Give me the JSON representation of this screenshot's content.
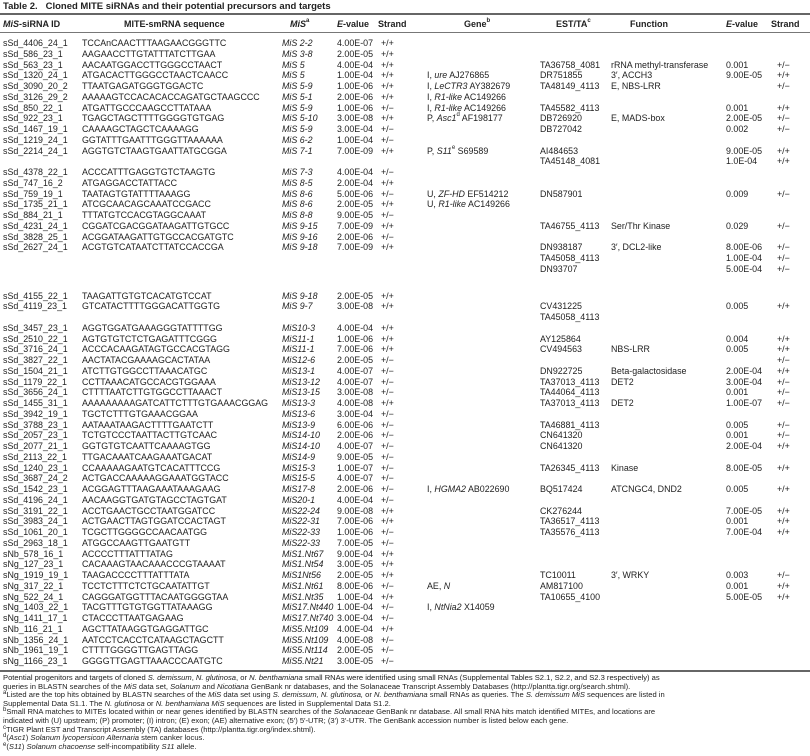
{
  "title": "Table 2.   Cloned MITE siRNAs and their potential precursors and targets",
  "header": {
    "id": [
      {
        "t": "MiS",
        "i": true
      },
      {
        "t": "-siRNA ID"
      }
    ],
    "seq": [
      {
        "t": "MITE-smRNA sequence"
      }
    ],
    "mis": [
      {
        "t": "MiS",
        "i": true
      },
      {
        "t": "a",
        "sup": true
      }
    ],
    "e1": [
      {
        "t": "E",
        "i": true
      },
      {
        "t": "-value"
      }
    ],
    "s1": [
      {
        "t": "Strand"
      }
    ],
    "gene": [
      {
        "t": "Gene"
      },
      {
        "t": "b",
        "sup": true
      }
    ],
    "est": [
      {
        "t": "EST/TA"
      },
      {
        "t": "c",
        "sup": true
      }
    ],
    "func": [
      {
        "t": "Function"
      }
    ],
    "e2": [
      {
        "t": "E",
        "i": true
      },
      {
        "t": "-value"
      }
    ],
    "s2": [
      {
        "t": "Strand"
      }
    ]
  },
  "rows": [
    {
      "id": "sSd_4406_24_1",
      "seq": "TCCAnCAACTTTAAGAACGGGTTC",
      "mis": "MiS 2-2",
      "e1": "4.00E-07",
      "s1": "+/+"
    },
    {
      "id": "sSd_586_23_1",
      "seq": "AAGAACCTTGTATTTATCTTGAA",
      "mis": "MiS 3-8",
      "e1": "2.00E-05",
      "s1": "+/+"
    },
    {
      "id": "sSd_563_23_1",
      "seq": "AACAATGGACCTTGGGCCTAACT",
      "mis": "MiS 5",
      "e1": "4.00E-04",
      "s1": "+/+",
      "est": "TA36758_4081",
      "func": "rRNA methyl-transferase",
      "e2": "0.001",
      "s2": "+/−"
    },
    {
      "id": "sSd_1320_24_1",
      "seq": "ATGACACTTGGGCCTAACTCAACC",
      "mis": "MiS 5",
      "e1": "1.00E-04",
      "s1": "+/+",
      "gene": {
        "type": "I, ",
        "name": "ure",
        "acc": " AJ276865"
      },
      "est": "DR751855",
      "func": "3′, ACCH3",
      "e2": "9.00E-05",
      "s2": "+/+"
    },
    {
      "id": "sSd_3090_20_2",
      "seq": "TTAATGAGATGGGTGGACTC",
      "mis": "MiS 5-9",
      "e1": "1.00E-06",
      "s1": "+/+",
      "gene": {
        "type": "I, ",
        "name": "LeCTR3",
        "acc": " AY382679"
      },
      "est": "TA48149_4113",
      "func": "E, NBS-LRR",
      "s2": "+/−"
    },
    {
      "id": "sSd_3126_29_2",
      "seq": "AAAAAGTCCACACACCAGATGCTAAGCCC",
      "mis": "MiS 5-1",
      "e1": "2.00E-06",
      "s1": "+/+",
      "gene": {
        "type": "I, ",
        "name": "R1-like",
        "acc": " AC149266"
      }
    },
    {
      "id": "sSd_850_22_1",
      "seq": "ATGATTGCCCAAGCCTTATAAA",
      "mis": "MiS 5-9",
      "e1": "1.00E-06",
      "s1": "+/−",
      "gene": {
        "type": "I, ",
        "name": "R1-like",
        "acc": " AC149266"
      },
      "est": "TA45582_4113",
      "e2": "0.001",
      "s2": "+/+"
    },
    {
      "id": "sSd_922_23_1",
      "seq": "TGAGCTAGCTTTTGGGGTGTGAG",
      "mis": "MiS 5-10",
      "e1": "3.00E-08",
      "s1": "+/+",
      "gene": {
        "type": "P, ",
        "name": "Asc1",
        "sup": "d",
        "acc": " AF198177"
      },
      "est": "DB726920",
      "func": "E, MADS-box",
      "e2": "2.00E-05",
      "s2": "+/−"
    },
    {
      "id": "sSd_1467_19_1",
      "seq": "CAAAAGCTAGCTCAAAAGG",
      "mis": "MiS 5-9",
      "e1": "3.00E-04",
      "s1": "+/−",
      "est": "DB727042",
      "e2": "0.002",
      "s2": "+/−"
    },
    {
      "id": "sSd_1219_24_1",
      "seq": "GGTATTTGAATTTGGGTTAAAAAA",
      "mis": "MiS 6-2",
      "e1": "1.00E-04",
      "s1": "+/−"
    },
    {
      "id": "sSd_2214_24_1",
      "seq": "AGGTGTCTAAGTGAATTATGCGGA",
      "mis": "MiS 7-1",
      "e1": "7.00E-09",
      "s1": "+/+",
      "gene": {
        "type": "P, ",
        "name": "S11",
        "sup": "e",
        "acc": " S69589"
      },
      "est": "AI484653",
      "e2": "9.00E-05",
      "s2": "+/+"
    },
    {
      "est": "TA45148_4081",
      "e2": "1.0E-04",
      "s2": "+/+"
    },
    {
      "id": "sSd_4378_22_1",
      "seq": "ACCCATTTGAGGTGTCTAAGTG",
      "mis": "MiS 7-3",
      "e1": "4.00E-04",
      "s1": "+/−"
    },
    {
      "id": "sSd_747_16_2",
      "seq": "ATGAGGACCTATTACC",
      "mis": "MiS 8-5",
      "e1": "2.00E-04",
      "s1": "+/+"
    },
    {
      "id": "sSd_759_19_1",
      "seq": "TAATAGTGTATTTTAAAGG",
      "mis": "MiS 8-6",
      "e1": "5.00E-06",
      "s1": "+/−",
      "gene": {
        "type": "U, ",
        "name": "ZF-HD",
        "acc": " EF514212"
      },
      "est": "DN587901",
      "e2": "0.009",
      "s2": "+/−"
    },
    {
      "id": "sSd_1735_21_1",
      "seq": "ATCGCAACAGCAAATCCGACC",
      "mis": "MiS 8-6",
      "e1": "2.00E-05",
      "s1": "+/+",
      "gene": {
        "type": "U, ",
        "name": "R1-like",
        "acc": " AC149266"
      }
    },
    {
      "id": "sSd_884_21_1",
      "seq": "TTTATGTCCACGTAGGCAAAT",
      "mis": "MiS 8-8",
      "e1": "9.00E-05",
      "s1": "+/−"
    },
    {
      "id": "sSd_4231_24_1",
      "seq": "CGGATCGACGGATAAGATTGTGCC",
      "mis": "MiS 9-15",
      "e1": "7.00E-09",
      "s1": "+/+",
      "est": "TA46755_4113",
      "func": "Ser/Thr Kinase",
      "e2": "0.029",
      "s2": "+/−"
    },
    {
      "id": "sSd_3828_25_1",
      "seq": "ACGGATAAGATTGTGCCACGATGTC",
      "mis": "MiS 9-16",
      "e1": "2.00E-06",
      "s1": "+/−"
    },
    {
      "id": "sSd_2627_24_1",
      "seq": "ACGTGTCATAATCTTATCCACCGA",
      "mis": "MiS 9-18",
      "e1": "7.00E-09",
      "s1": "+/+",
      "est": "DN938187",
      "func": "3′, DCL2-like",
      "e2": "8.00E-06",
      "s2": "+/−"
    },
    {
      "est": "TA45058_4113",
      "e2": "1.00E-04",
      "s2": "+/−"
    },
    {
      "est": "DN93707",
      "e2": "5.00E-04",
      "s2": "+/−"
    },
    {
      "blank": true
    },
    {
      "blank": true
    },
    {
      "id": "sSd_4155_22_1",
      "seq": "TAAGATTGTGTCACATGTCCAT",
      "mis": "MiS 9-18",
      "e1": "2.00E-05",
      "s1": "+/+"
    },
    {
      "id": "sSd_4119_23_1",
      "seq": "GTCATACTTTTGGGACATTGGTG",
      "mis": "MiS 9-7",
      "e1": "3.00E-08",
      "s1": "+/+",
      "est": "CV431225",
      "e2": "0.005",
      "s2": "+/+"
    },
    {
      "est": "TA45058_4113"
    },
    {
      "id": "sSd_3457_23_1",
      "seq": "AGGTGGATGAAAGGGTATTTTGG",
      "mis": "MiS10-3",
      "e1": "4.00E-04",
      "s1": "+/+"
    },
    {
      "id": "sSd_2510_22_1",
      "seq": "AGTGTGTCTCTGAGATTTCGGG",
      "mis": "MiS11-1",
      "e1": "1.00E-06",
      "s1": "+/+",
      "est": "AY125864",
      "e2": "0.004",
      "s2": "+/+"
    },
    {
      "id": "sSd_3716_24_1",
      "seq": "ACCCACAAGATAGTGCCACGTAGG",
      "mis": "MiS11-1",
      "e1": "7.00E-06",
      "s1": "+/+",
      "est": "CV494563",
      "func": "NBS-LRR",
      "e2": "0.005",
      "s2": "+/+"
    },
    {
      "id": "sSd_3827_22_1",
      "seq": "AACTATACGAAAAGCACTATAA",
      "mis": "MiS12-6",
      "e1": "2.00E-05",
      "s1": "+/−",
      "s2": "+/−"
    },
    {
      "id": "sSd_1504_21_1",
      "seq": "ATCTTGTGGCCTTAAACATGC",
      "mis": "MiS13-1",
      "e1": "4.00E-07",
      "s1": "+/−",
      "est": "DN922725",
      "func": "Beta-galactosidase",
      "e2": "2.00E-04",
      "s2": "+/+"
    },
    {
      "id": "sSd_1179_22_1",
      "seq": "CCTTAAACATGCCACGTGGAAA",
      "mis": "MiS13-12",
      "e1": "4.00E-07",
      "s1": "+/−",
      "est": "TA37013_4113",
      "func": "DET2",
      "e2": "3.00E-04",
      "s2": "+/−"
    },
    {
      "id": "sSd_3656_24_1",
      "seq": "CTTTTAATCTTGTGGCCTTAAACT",
      "mis": "MiS13-15",
      "e1": "3.00E-08",
      "s1": "+/−",
      "est": "TA44064_4113",
      "e2": "0.001",
      "s2": "+/−"
    },
    {
      "id": "sSd_1455_31_1",
      "seq": "AAAAAAAAAGATCATTCTTTGTGAAACGGAG",
      "mis": "MiS13-3",
      "e1": "4.00E-08",
      "s1": "+/+",
      "est": "TA37013_4113",
      "func": "DET2",
      "e2": "1.00E-07",
      "s2": "+/−"
    },
    {
      "id": "sSd_3942_19_1",
      "seq": "TGCTCTTTGTGAAACGGAA",
      "mis": "MiS13-6",
      "e1": "3.00E-04",
      "s1": "+/−"
    },
    {
      "id": "sSd_3788_23_1",
      "seq": "AATAAATAAGACTTTTGAATCTT",
      "mis": "MiS13-9",
      "e1": "6.00E-06",
      "s1": "+/−",
      "est": "TA46881_4113",
      "e2": "0.005",
      "s2": "+/−"
    },
    {
      "id": "sSd_2057_23_1",
      "seq": "TCTGTCCCTAATTACTTGTCAAC",
      "mis": "MiS14-10",
      "e1": "2.00E-06",
      "s1": "+/−",
      "est": "CN641320",
      "e2": "0.001",
      "s2": "+/−"
    },
    {
      "id": "sSd_2077_21_1",
      "seq": "GGTGTGTCAATTCAAAAGTGG",
      "mis": "MiS14-10",
      "e1": "4.00E-07",
      "s1": "+/−",
      "est": "CN641320",
      "e2": "2.00E-04",
      "s2": "+/+"
    },
    {
      "id": "sSd_2113_22_1",
      "seq": "TTGACAAATCAAGAAATGACAT",
      "mis": "MiS14-9",
      "e1": "9.00E-05",
      "s1": "+/−"
    },
    {
      "id": "sSd_1240_23_1",
      "seq": "CCAAAAAGAATGTCACATTTCCG",
      "mis": "MiS15-3",
      "e1": "1.00E-07",
      "s1": "+/−",
      "est": "TA26345_4113",
      "func": "Kinase",
      "e2": "8.00E-05",
      "s2": "+/+"
    },
    {
      "id": "sSd_3687_24_2",
      "seq": "ACTGACCAAAAAGGAAATGGTACC",
      "mis": "MiS15-5",
      "e1": "4.00E-07",
      "s1": "+/−"
    },
    {
      "id": "sSd_1542_23_1",
      "seq": "ACGGAGTTTAAGAAATAAAGAAG",
      "mis": "MiS17-8",
      "e1": "2.00E-06",
      "s1": "+/−",
      "gene": {
        "type": "I, ",
        "name": "HGMA2",
        "acc": " AB022690"
      },
      "est": "BQ517424",
      "func": "ATCNGC4, DND2",
      "e2": "0.005",
      "s2": "+/+"
    },
    {
      "id": "sSd_4196_24_1",
      "seq": "AACAAGGTGATGTAGCCTAGTGAT",
      "mis": "MiS20-1",
      "e1": "4.00E-04",
      "s1": "+/−"
    },
    {
      "id": "sSd_3191_22_1",
      "seq": "ACCTGAACTGCCTAATGGATCC",
      "mis": "MiS22-24",
      "e1": "9.00E-08",
      "s1": "+/+",
      "est": "CK276244",
      "e2": "7.00E-05",
      "s2": "+/+"
    },
    {
      "id": "sSd_3983_24_1",
      "seq": "ACTGAACTTAGTGGATCCACTAGT",
      "mis": "MiS22-31",
      "e1": "7.00E-06",
      "s1": "+/+",
      "est": "TA36517_4113",
      "e2": "0.001",
      "s2": "+/+"
    },
    {
      "id": "sSd_1061_20_1",
      "seq": "TCGCTTGGGGCCAACAATGG",
      "mis": "MiS22-33",
      "e1": "1.00E-06",
      "s1": "+/−",
      "est": "TA35576_4113",
      "e2": "7.00E-04",
      "s2": "+/+"
    },
    {
      "id": "sSd_2963_18_1",
      "seq": "ATGGCCAAGTTGAATGTT",
      "mis": "MiS22-33",
      "e1": "7.00E-05",
      "s1": "+/−"
    },
    {
      "id": "sNb_578_16_1",
      "seq": "ACCCCTTTATTTATAG",
      "mis": "MiS1.Nt67",
      "e1": "9.00E-04",
      "s1": "+/+"
    },
    {
      "id": "sNg_127_23_1",
      "seq": "CACAAAGTAACAAACCCGTAAAAT",
      "mis": "MiS1.Nt54",
      "e1": "3.00E-05",
      "s1": "+/+"
    },
    {
      "id": "sNg_1919_19_1",
      "seq": "TAAGACCCCTTTATTTATA",
      "mis": "MiS1Nt56",
      "e1": "2.00E-05",
      "s1": "+/+",
      "est": "TC10011",
      "func": "3′, WRKY",
      "e2": "0.003",
      "s2": "+/−"
    },
    {
      "id": "sNg_317_22_1",
      "seq": "TCCTCTTTCTCTGCAATATTGT",
      "mis": "MiS1.Nt61",
      "e1": "8.00E-06",
      "s1": "+/−",
      "gene": {
        "type": "AE, ",
        "name": "N",
        "acc": ""
      },
      "est": "AM817100",
      "e2": "0.001",
      "s2": "+/+"
    },
    {
      "id": "sNg_522_24_1",
      "seq": "CAGGGATGGTTTACAATGGGGTAA",
      "mis": "MiS1.Nt35",
      "e1": "1.00E-04",
      "s1": "+/+",
      "est": "TA10655_4100",
      "e2": "5.00E-05",
      "s2": "+/+"
    },
    {
      "id": "sNg_1403_22_1",
      "seq": "TACGTTTGTGTGGTTATAAAGG",
      "mis": "MiS17.Nt440",
      "e1": "1.00E-04",
      "s1": "+/−",
      "gene": {
        "type": "I, ",
        "name": "NtNia2",
        "acc": " X14059"
      }
    },
    {
      "id": "sNg_1411_17_1",
      "seq": "CTACCCTTAATGAGAAG",
      "mis": "MiS17.Nt740",
      "e1": "3.00E-04",
      "s1": "+/−"
    },
    {
      "id": "sNb_116_21_1",
      "seq": "AGCTTATAAGGTGAGGATTGC",
      "mis": "MiS5.Nt109",
      "e1": "4.00E-04",
      "s1": "+/+"
    },
    {
      "id": "sNb_1356_24_1",
      "seq": "AATCCTCACCTCATAAGCTAGCTT",
      "mis": "MiS5.Nt109",
      "e1": "4.00E-08",
      "s1": "+/−"
    },
    {
      "id": "sNb_1961_19_1",
      "seq": "CTTTTGGGGTTGAGTTAGG",
      "mis": "MiS5.Nt114",
      "e1": "2.00E-05",
      "s1": "+/−"
    },
    {
      "id": "sNg_1166_23_1",
      "seq": "GGGGTTGAGTTAAACCCAATGTC",
      "mis": "MiS5.Nt21",
      "e1": "3.00E-05",
      "s1": "+/−"
    }
  ],
  "footnotes": [
    [
      {
        "t": "Potential progenitors and targets of cloned "
      },
      {
        "t": "S. demissum",
        "i": true
      },
      {
        "t": ", "
      },
      {
        "t": "N. glutinosa",
        "i": true
      },
      {
        "t": ", or "
      },
      {
        "t": "N. benthamiana",
        "i": true
      },
      {
        "t": " small RNAs were identified using small RNAs (Supplemental Tables S2.1, S2.2, and S2.3 respectively) as"
      }
    ],
    [
      {
        "t": "queries in BLASTN searches of the "
      },
      {
        "t": "MiS",
        "i": true
      },
      {
        "t": " data set, "
      },
      {
        "t": "Solanum",
        "i": true
      },
      {
        "t": " and "
      },
      {
        "t": "Nicotiana",
        "i": true
      },
      {
        "t": " GenBank nr databases, and the Solanaceae Transcript Assembly Databases (http://plantta.tigr.org/search.shtml)."
      }
    ],
    [
      {
        "t": "a",
        "sup": true
      },
      {
        "t": "Listed are the top hits obtained by BLASTN searches of the "
      },
      {
        "t": "MiS",
        "i": true
      },
      {
        "t": " data set using "
      },
      {
        "t": "S. demissum, N. glutinosa,",
        "i": true
      },
      {
        "t": " or "
      },
      {
        "t": "N. benthamiana",
        "i": true
      },
      {
        "t": " small RNAs as queries. The "
      },
      {
        "t": "S. demissum MiS",
        "i": true
      },
      {
        "t": " sequences are listed in"
      }
    ],
    [
      {
        "t": "Supplemental Data S1.1. The "
      },
      {
        "t": "N. glutinosa",
        "i": true
      },
      {
        "t": " or "
      },
      {
        "t": "N. benthamiana MiS",
        "i": true
      },
      {
        "t": " sequences are listed in Supplemental Data S1.2."
      }
    ],
    [
      {
        "t": "b",
        "sup": true
      },
      {
        "t": "Small RNA matches to MITEs located within or near genes identified by BLASTN searches of the "
      },
      {
        "t": "Solanaceae",
        "i": true
      },
      {
        "t": " GenBank nr database. All small RNA hits match identified MITEs, and locations are"
      }
    ],
    [
      {
        "t": "indicated with (U) upstream; (P) promoter; (I) intron; (E) exon; (AE) alternative exon; (5′) 5′-UTR; (3′) 3′-UTR. The GenBank accession number is listed below each gene."
      }
    ],
    [
      {
        "t": "c",
        "sup": true
      },
      {
        "t": "TIGR Plant EST and Transcript Assembly (TA) databases (http://plantta.tigr.org/index.shtml)."
      }
    ],
    [
      {
        "t": "d",
        "sup": true
      },
      {
        "t": "("
      },
      {
        "t": "Asc1",
        "i": true
      },
      {
        "t": ") "
      },
      {
        "t": "Solanum lycopersicon Alternaria",
        "i": true
      },
      {
        "t": " stem canker locus."
      }
    ],
    [
      {
        "t": "e",
        "sup": true
      },
      {
        "t": "("
      },
      {
        "t": "S11",
        "i": true
      },
      {
        "t": ") "
      },
      {
        "t": "Solanum chacoense",
        "i": true
      },
      {
        "t": " self-incompatibility "
      },
      {
        "t": "S11",
        "i": true
      },
      {
        "t": " allele."
      }
    ]
  ]
}
